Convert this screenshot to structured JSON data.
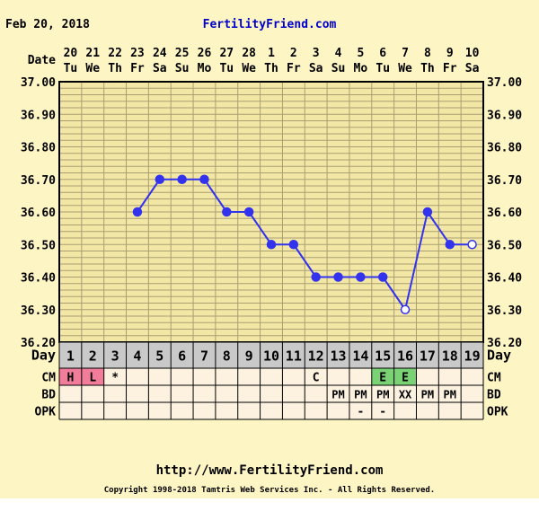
{
  "header": {
    "date": "Feb 20, 2018",
    "brand": "FertilityFriend.com"
  },
  "footer": {
    "url": "http://www.FertilityFriend.com",
    "copyright": "Copyright 1998-2018 Tamtris Web Services Inc. - All Rights Reserved."
  },
  "chart_data": {
    "type": "line",
    "title": "",
    "xlabel": "Date",
    "ylabel": "",
    "ylim": [
      36.2,
      37.0
    ],
    "y_ticks": [
      "36.20",
      "36.30",
      "36.40",
      "36.50",
      "36.60",
      "36.70",
      "36.80",
      "36.90",
      "37.00"
    ],
    "grid": true,
    "row_labels": {
      "date": "Date",
      "day": "Day",
      "cm": "CM",
      "bd": "BD",
      "opk": "OPK"
    },
    "dates": [
      "20",
      "21",
      "22",
      "23",
      "24",
      "25",
      "26",
      "27",
      "28",
      "1",
      "2",
      "3",
      "4",
      "5",
      "6",
      "7",
      "8",
      "9",
      "10"
    ],
    "weekdays": [
      "Tu",
      "We",
      "Th",
      "Fr",
      "Sa",
      "Su",
      "Mo",
      "Tu",
      "We",
      "Th",
      "Fr",
      "Sa",
      "Su",
      "Mo",
      "Tu",
      "We",
      "Th",
      "Fr",
      "Sa"
    ],
    "days": [
      "1",
      "2",
      "3",
      "4",
      "5",
      "6",
      "7",
      "8",
      "9",
      "10",
      "11",
      "12",
      "13",
      "14",
      "15",
      "16",
      "17",
      "18",
      "19"
    ],
    "series": [
      {
        "values": [
          null,
          null,
          null,
          36.6,
          36.7,
          36.7,
          36.7,
          36.6,
          36.6,
          36.5,
          36.5,
          36.4,
          36.4,
          36.4,
          36.4,
          36.3,
          36.6,
          36.5,
          36.5
        ],
        "open_points": [
          16,
          19
        ],
        "color": "#3333ee"
      }
    ],
    "cm": [
      "H",
      "L",
      "*",
      "",
      "",
      "",
      "",
      "",
      "",
      "",
      "",
      "C",
      "",
      "",
      "E",
      "E",
      "",
      "",
      ""
    ],
    "bd": [
      "",
      "",
      "",
      "",
      "",
      "",
      "",
      "",
      "",
      "",
      "",
      "",
      "PM",
      "PM",
      "PM",
      "XX",
      "PM",
      "PM",
      ""
    ],
    "opk": [
      "",
      "",
      "",
      "",
      "",
      "",
      "",
      "",
      "",
      "",
      "",
      "",
      "",
      "-",
      "-",
      "",
      "",
      "",
      ""
    ],
    "colors": {
      "background": "#ffffff",
      "panel": "#fdf5c4",
      "plot_bg": "#f3e7a6",
      "grid": "#a99f72",
      "day_row": "#c9c9c9",
      "row_bg": "#fdf2e0",
      "line": "#3333ee",
      "brand": "#0000cc",
      "cm_h": "#f27d9b",
      "cm_l": "#f27d9b",
      "cm_e": "#7bd275"
    }
  }
}
